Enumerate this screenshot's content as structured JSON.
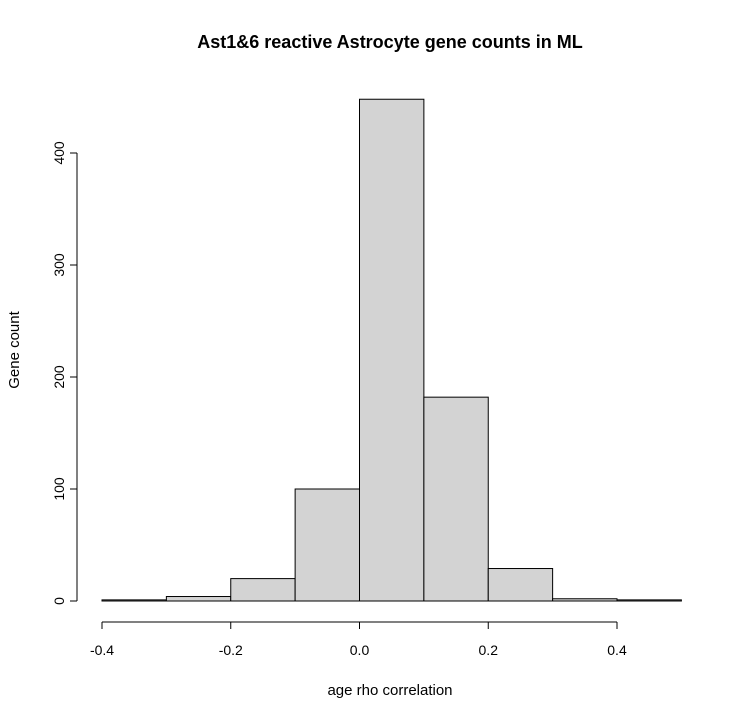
{
  "chart_data": {
    "type": "bar",
    "title": "Ast1&6 reactive Astrocyte gene counts in ML",
    "xlabel": "age rho correlation",
    "ylabel": "Gene count",
    "bins": [
      {
        "x0": -0.4,
        "x1": -0.3,
        "count": 1
      },
      {
        "x0": -0.3,
        "x1": -0.2,
        "count": 4
      },
      {
        "x0": -0.2,
        "x1": -0.1,
        "count": 20
      },
      {
        "x0": -0.1,
        "x1": 0.0,
        "count": 100
      },
      {
        "x0": 0.0,
        "x1": 0.1,
        "count": 448
      },
      {
        "x0": 0.1,
        "x1": 0.2,
        "count": 182
      },
      {
        "x0": 0.2,
        "x1": 0.3,
        "count": 29
      },
      {
        "x0": 0.3,
        "x1": 0.4,
        "count": 2
      },
      {
        "x0": 0.4,
        "x1": 0.5,
        "count": 1
      }
    ],
    "xlim": [
      -0.4,
      0.5
    ],
    "ylim": [
      0,
      400
    ],
    "x_ticks": [
      -0.4,
      -0.2,
      0.0,
      0.2,
      0.4
    ],
    "x_tick_labels": [
      "-0.4",
      "-0.2",
      "0.0",
      "0.2",
      "0.4"
    ],
    "y_ticks": [
      0,
      100,
      200,
      300,
      400
    ],
    "y_tick_labels": [
      "0",
      "100",
      "200",
      "300",
      "400"
    ],
    "colors": {
      "bar_fill": "#d3d3d3",
      "bar_stroke": "#000000"
    },
    "grid": false,
    "legend": "none"
  }
}
